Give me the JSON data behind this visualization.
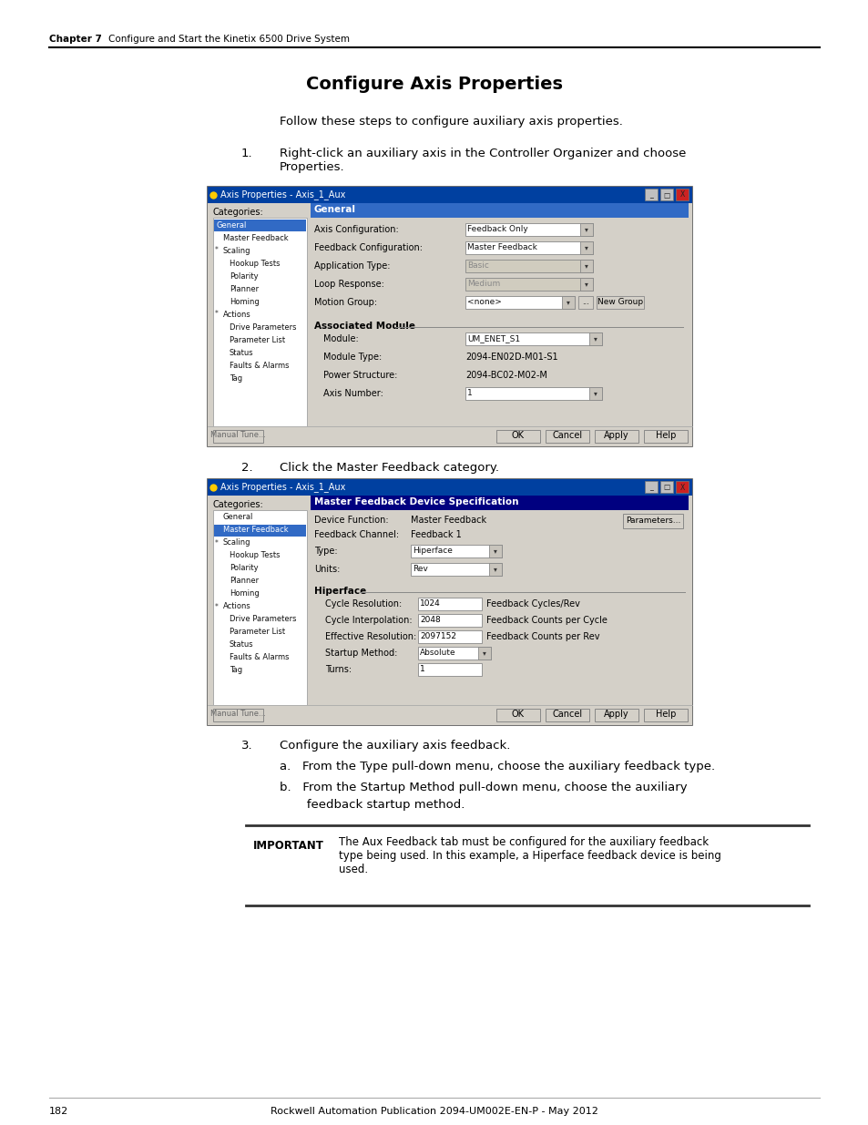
{
  "bg_color": "#ffffff",
  "header_bold": "Chapter 7",
  "header_normal": "    Configure and Start the Kinetix 6500 Drive System",
  "title": "Configure Axis Properties",
  "intro": "Follow these steps to configure auxiliary axis properties.",
  "s1_num": "1.",
  "s1_text": "Right-click an auxiliary axis in the Controller Organizer and choose\nProperties.",
  "s2_num": "2.",
  "s2_text": "Click the Master Feedback category.",
  "s3_num": "3.",
  "s3_text": "Configure the auxiliary axis feedback.",
  "s3a": "a.   From the Type pull-down menu, choose the auxiliary feedback type.",
  "s3b_1": "b.   From the Startup Method pull-down menu, choose the auxiliary",
  "s3b_2": "       feedback startup method.",
  "imp_label": "IMPORTANT",
  "imp_text1": "The Aux Feedback tab must be configured for the auxiliary feedback",
  "imp_text2": "type being used. In this example, a Hiperface feedback device is being",
  "imp_text3": "used.",
  "footer_num": "182",
  "footer_mid": "Rockwell Automation Publication 2094-UM002E-EN-P - May 2012",
  "dlg1_title": "Axis Properties - Axis_1_Aux",
  "dlg1_cats": [
    "General",
    "Master Feedback",
    "Scaling",
    "Hookup Tests",
    "Polarity",
    "Planner",
    "Homing",
    "Actions",
    "Drive Parameters",
    "Parameter List",
    "Status",
    "Faults & Alarms",
    "Tag"
  ],
  "dlg1_star": [
    true,
    false,
    true,
    false,
    false,
    false,
    false,
    true,
    false,
    false,
    false,
    false,
    false
  ],
  "dlg1_indent": [
    0,
    1,
    1,
    2,
    2,
    2,
    2,
    1,
    2,
    2,
    2,
    2,
    2
  ],
  "dlg1_sel": 0,
  "dlg1_hdr": "General",
  "dlg1_hdr_color": "#316ac5",
  "dlg1_fields": [
    {
      "label": "Axis Configuration:",
      "value": "Feedback Only",
      "type": "combo",
      "enabled": true
    },
    {
      "label": "Feedback Configuration:",
      "value": "Master Feedback",
      "type": "combo",
      "enabled": true
    },
    {
      "label": "Application Type:",
      "value": "Basic",
      "type": "combo",
      "enabled": false
    },
    {
      "label": "Loop Response:",
      "value": "Medium",
      "type": "combo",
      "enabled": false
    },
    {
      "label": "Motion Group:",
      "value": "<none>",
      "type": "combo_extra",
      "enabled": true
    }
  ],
  "dlg1_assoc": "Associated Module",
  "dlg1_mod_fields": [
    {
      "label": "Module:",
      "value": "UM_ENET_S1",
      "type": "combo"
    },
    {
      "label": "Module Type:",
      "value": "2094-EN02D-M01-S1",
      "type": "text"
    },
    {
      "label": "Power Structure:",
      "value": "2094-BC02-M02-M",
      "type": "text"
    },
    {
      "label": "Axis Number:",
      "value": "1",
      "type": "combo"
    }
  ],
  "dlg2_title": "Axis Properties - Axis_1_Aux",
  "dlg2_cats": [
    "General",
    "Master Feedback",
    "Scaling",
    "Hookup Tests",
    "Polarity",
    "Planner",
    "Homing",
    "Actions",
    "Drive Parameters",
    "Parameter List",
    "Status",
    "Faults & Alarms",
    "Tag"
  ],
  "dlg2_star": [
    false,
    false,
    true,
    false,
    false,
    false,
    false,
    true,
    false,
    false,
    false,
    false,
    false
  ],
  "dlg2_indent": [
    1,
    1,
    1,
    2,
    2,
    2,
    2,
    1,
    2,
    2,
    2,
    2,
    2
  ],
  "dlg2_sel": 1,
  "dlg2_hdr": "Master Feedback Device Specification",
  "dlg2_hdr_color": "#000080",
  "dlg2_info": [
    {
      "label": "Device Function:",
      "value": "Master Feedback"
    },
    {
      "label": "Feedback Channel:",
      "value": "Feedback 1"
    }
  ],
  "dlg2_typefields": [
    {
      "label": "Type:",
      "value": "Hiperface"
    },
    {
      "label": "Units:",
      "value": "Rev"
    }
  ],
  "dlg2_hf_label": "Hiperface",
  "dlg2_hf": [
    {
      "label": "Cycle Resolution:",
      "value": "1024",
      "unit": "Feedback Cycles/Rev"
    },
    {
      "label": "Cycle Interpolation:",
      "value": "2048",
      "unit": "Feedback Counts per Cycle"
    },
    {
      "label": "Effective Resolution:",
      "value": "2097152",
      "unit": "Feedback Counts per Rev"
    },
    {
      "label": "Startup Method:",
      "value": "Absolute",
      "unit": "",
      "type": "combo"
    },
    {
      "label": "Turns:",
      "value": "1",
      "unit": ""
    }
  ]
}
